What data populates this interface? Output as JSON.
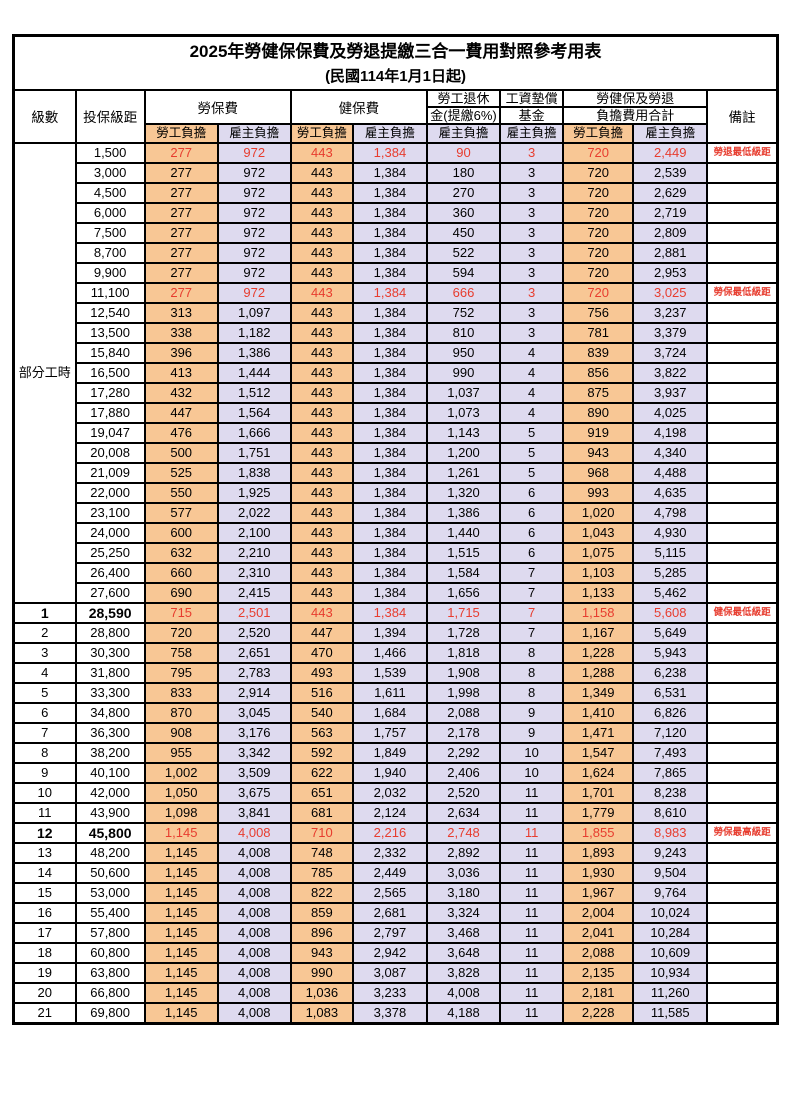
{
  "title": "2025年勞健保保費及勞退提繳三合一費用對照參考用表",
  "subtitle": "(民國114年1月1日起)",
  "columns": {
    "level": "級數",
    "bracket": "投保級距",
    "labor_insurance": "勞保費",
    "health_insurance": "健保費",
    "pension_line1": "勞工退休",
    "pension_line2": "金(提繳6%)",
    "wage_fund_line1": "工資墊償",
    "wage_fund_line2": "基金",
    "total_line1": "勞健保及勞退",
    "total_line2": "負擔費用合計",
    "remark": "備註",
    "employee_share": "勞工負擔",
    "employer_share": "雇主負擔"
  },
  "part_time": {
    "label": "部分工時",
    "row_count": 23
  },
  "colors": {
    "employee_column_bg": "#f8c795",
    "employer_column_bg": "#dedaef",
    "highlight_text": "#e73c2e",
    "border": "#000000"
  },
  "rows": [
    {
      "level": null,
      "bracket": "1,500",
      "labor_employee": "277",
      "labor_employer": "972",
      "health_employee": "443",
      "health_employer": "1,384",
      "pension_employer": "90",
      "wage_fund_employer": "3",
      "total_employee": "720",
      "total_employer": "2,449",
      "remark": "勞退最低級距",
      "red": true,
      "bold": false
    },
    {
      "level": null,
      "bracket": "3,000",
      "labor_employee": "277",
      "labor_employer": "972",
      "health_employee": "443",
      "health_employer": "1,384",
      "pension_employer": "180",
      "wage_fund_employer": "3",
      "total_employee": "720",
      "total_employer": "2,539",
      "remark": "",
      "red": false,
      "bold": false
    },
    {
      "level": null,
      "bracket": "4,500",
      "labor_employee": "277",
      "labor_employer": "972",
      "health_employee": "443",
      "health_employer": "1,384",
      "pension_employer": "270",
      "wage_fund_employer": "3",
      "total_employee": "720",
      "total_employer": "2,629",
      "remark": "",
      "red": false,
      "bold": false
    },
    {
      "level": null,
      "bracket": "6,000",
      "labor_employee": "277",
      "labor_employer": "972",
      "health_employee": "443",
      "health_employer": "1,384",
      "pension_employer": "360",
      "wage_fund_employer": "3",
      "total_employee": "720",
      "total_employer": "2,719",
      "remark": "",
      "red": false,
      "bold": false
    },
    {
      "level": null,
      "bracket": "7,500",
      "labor_employee": "277",
      "labor_employer": "972",
      "health_employee": "443",
      "health_employer": "1,384",
      "pension_employer": "450",
      "wage_fund_employer": "3",
      "total_employee": "720",
      "total_employer": "2,809",
      "remark": "",
      "red": false,
      "bold": false
    },
    {
      "level": null,
      "bracket": "8,700",
      "labor_employee": "277",
      "labor_employer": "972",
      "health_employee": "443",
      "health_employer": "1,384",
      "pension_employer": "522",
      "wage_fund_employer": "3",
      "total_employee": "720",
      "total_employer": "2,881",
      "remark": "",
      "red": false,
      "bold": false
    },
    {
      "level": null,
      "bracket": "9,900",
      "labor_employee": "277",
      "labor_employer": "972",
      "health_employee": "443",
      "health_employer": "1,384",
      "pension_employer": "594",
      "wage_fund_employer": "3",
      "total_employee": "720",
      "total_employer": "2,953",
      "remark": "",
      "red": false,
      "bold": false
    },
    {
      "level": null,
      "bracket": "11,100",
      "labor_employee": "277",
      "labor_employer": "972",
      "health_employee": "443",
      "health_employer": "1,384",
      "pension_employer": "666",
      "wage_fund_employer": "3",
      "total_employee": "720",
      "total_employer": "3,025",
      "remark": "勞保最低級距",
      "red": true,
      "bold": false
    },
    {
      "level": null,
      "bracket": "12,540",
      "labor_employee": "313",
      "labor_employer": "1,097",
      "health_employee": "443",
      "health_employer": "1,384",
      "pension_employer": "752",
      "wage_fund_employer": "3",
      "total_employee": "756",
      "total_employer": "3,237",
      "remark": "",
      "red": false,
      "bold": false
    },
    {
      "level": null,
      "bracket": "13,500",
      "labor_employee": "338",
      "labor_employer": "1,182",
      "health_employee": "443",
      "health_employer": "1,384",
      "pension_employer": "810",
      "wage_fund_employer": "3",
      "total_employee": "781",
      "total_employer": "3,379",
      "remark": "",
      "red": false,
      "bold": false
    },
    {
      "level": null,
      "bracket": "15,840",
      "labor_employee": "396",
      "labor_employer": "1,386",
      "health_employee": "443",
      "health_employer": "1,384",
      "pension_employer": "950",
      "wage_fund_employer": "4",
      "total_employee": "839",
      "total_employer": "3,724",
      "remark": "",
      "red": false,
      "bold": false
    },
    {
      "level": null,
      "bracket": "16,500",
      "labor_employee": "413",
      "labor_employer": "1,444",
      "health_employee": "443",
      "health_employer": "1,384",
      "pension_employer": "990",
      "wage_fund_employer": "4",
      "total_employee": "856",
      "total_employer": "3,822",
      "remark": "",
      "red": false,
      "bold": false
    },
    {
      "level": null,
      "bracket": "17,280",
      "labor_employee": "432",
      "labor_employer": "1,512",
      "health_employee": "443",
      "health_employer": "1,384",
      "pension_employer": "1,037",
      "wage_fund_employer": "4",
      "total_employee": "875",
      "total_employer": "3,937",
      "remark": "",
      "red": false,
      "bold": false
    },
    {
      "level": null,
      "bracket": "17,880",
      "labor_employee": "447",
      "labor_employer": "1,564",
      "health_employee": "443",
      "health_employer": "1,384",
      "pension_employer": "1,073",
      "wage_fund_employer": "4",
      "total_employee": "890",
      "total_employer": "4,025",
      "remark": "",
      "red": false,
      "bold": false
    },
    {
      "level": null,
      "bracket": "19,047",
      "labor_employee": "476",
      "labor_employer": "1,666",
      "health_employee": "443",
      "health_employer": "1,384",
      "pension_employer": "1,143",
      "wage_fund_employer": "5",
      "total_employee": "919",
      "total_employer": "4,198",
      "remark": "",
      "red": false,
      "bold": false
    },
    {
      "level": null,
      "bracket": "20,008",
      "labor_employee": "500",
      "labor_employer": "1,751",
      "health_employee": "443",
      "health_employer": "1,384",
      "pension_employer": "1,200",
      "wage_fund_employer": "5",
      "total_employee": "943",
      "total_employer": "4,340",
      "remark": "",
      "red": false,
      "bold": false
    },
    {
      "level": null,
      "bracket": "21,009",
      "labor_employee": "525",
      "labor_employer": "1,838",
      "health_employee": "443",
      "health_employer": "1,384",
      "pension_employer": "1,261",
      "wage_fund_employer": "5",
      "total_employee": "968",
      "total_employer": "4,488",
      "remark": "",
      "red": false,
      "bold": false
    },
    {
      "level": null,
      "bracket": "22,000",
      "labor_employee": "550",
      "labor_employer": "1,925",
      "health_employee": "443",
      "health_employer": "1,384",
      "pension_employer": "1,320",
      "wage_fund_employer": "6",
      "total_employee": "993",
      "total_employer": "4,635",
      "remark": "",
      "red": false,
      "bold": false
    },
    {
      "level": null,
      "bracket": "23,100",
      "labor_employee": "577",
      "labor_employer": "2,022",
      "health_employee": "443",
      "health_employer": "1,384",
      "pension_employer": "1,386",
      "wage_fund_employer": "6",
      "total_employee": "1,020",
      "total_employer": "4,798",
      "remark": "",
      "red": false,
      "bold": false
    },
    {
      "level": null,
      "bracket": "24,000",
      "labor_employee": "600",
      "labor_employer": "2,100",
      "health_employee": "443",
      "health_employer": "1,384",
      "pension_employer": "1,440",
      "wage_fund_employer": "6",
      "total_employee": "1,043",
      "total_employer": "4,930",
      "remark": "",
      "red": false,
      "bold": false
    },
    {
      "level": null,
      "bracket": "25,250",
      "labor_employee": "632",
      "labor_employer": "2,210",
      "health_employee": "443",
      "health_employer": "1,384",
      "pension_employer": "1,515",
      "wage_fund_employer": "6",
      "total_employee": "1,075",
      "total_employer": "5,115",
      "remark": "",
      "red": false,
      "bold": false
    },
    {
      "level": null,
      "bracket": "26,400",
      "labor_employee": "660",
      "labor_employer": "2,310",
      "health_employee": "443",
      "health_employer": "1,384",
      "pension_employer": "1,584",
      "wage_fund_employer": "7",
      "total_employee": "1,103",
      "total_employer": "5,285",
      "remark": "",
      "red": false,
      "bold": false
    },
    {
      "level": null,
      "bracket": "27,600",
      "labor_employee": "690",
      "labor_employer": "2,415",
      "health_employee": "443",
      "health_employer": "1,384",
      "pension_employer": "1,656",
      "wage_fund_employer": "7",
      "total_employee": "1,133",
      "total_employer": "5,462",
      "remark": "",
      "red": false,
      "bold": false
    },
    {
      "level": "1",
      "bracket": "28,590",
      "labor_employee": "715",
      "labor_employer": "2,501",
      "health_employee": "443",
      "health_employer": "1,384",
      "pension_employer": "1,715",
      "wage_fund_employer": "7",
      "total_employee": "1,158",
      "total_employer": "5,608",
      "remark": "健保最低級距",
      "red": true,
      "bold": true
    },
    {
      "level": "2",
      "bracket": "28,800",
      "labor_employee": "720",
      "labor_employer": "2,520",
      "health_employee": "447",
      "health_employer": "1,394",
      "pension_employer": "1,728",
      "wage_fund_employer": "7",
      "total_employee": "1,167",
      "total_employer": "5,649",
      "remark": "",
      "red": false,
      "bold": false
    },
    {
      "level": "3",
      "bracket": "30,300",
      "labor_employee": "758",
      "labor_employer": "2,651",
      "health_employee": "470",
      "health_employer": "1,466",
      "pension_employer": "1,818",
      "wage_fund_employer": "8",
      "total_employee": "1,228",
      "total_employer": "5,943",
      "remark": "",
      "red": false,
      "bold": false
    },
    {
      "level": "4",
      "bracket": "31,800",
      "labor_employee": "795",
      "labor_employer": "2,783",
      "health_employee": "493",
      "health_employer": "1,539",
      "pension_employer": "1,908",
      "wage_fund_employer": "8",
      "total_employee": "1,288",
      "total_employer": "6,238",
      "remark": "",
      "red": false,
      "bold": false
    },
    {
      "level": "5",
      "bracket": "33,300",
      "labor_employee": "833",
      "labor_employer": "2,914",
      "health_employee": "516",
      "health_employer": "1,611",
      "pension_employer": "1,998",
      "wage_fund_employer": "8",
      "total_employee": "1,349",
      "total_employer": "6,531",
      "remark": "",
      "red": false,
      "bold": false
    },
    {
      "level": "6",
      "bracket": "34,800",
      "labor_employee": "870",
      "labor_employer": "3,045",
      "health_employee": "540",
      "health_employer": "1,684",
      "pension_employer": "2,088",
      "wage_fund_employer": "9",
      "total_employee": "1,410",
      "total_employer": "6,826",
      "remark": "",
      "red": false,
      "bold": false
    },
    {
      "level": "7",
      "bracket": "36,300",
      "labor_employee": "908",
      "labor_employer": "3,176",
      "health_employee": "563",
      "health_employer": "1,757",
      "pension_employer": "2,178",
      "wage_fund_employer": "9",
      "total_employee": "1,471",
      "total_employer": "7,120",
      "remark": "",
      "red": false,
      "bold": false
    },
    {
      "level": "8",
      "bracket": "38,200",
      "labor_employee": "955",
      "labor_employer": "3,342",
      "health_employee": "592",
      "health_employer": "1,849",
      "pension_employer": "2,292",
      "wage_fund_employer": "10",
      "total_employee": "1,547",
      "total_employer": "7,493",
      "remark": "",
      "red": false,
      "bold": false
    },
    {
      "level": "9",
      "bracket": "40,100",
      "labor_employee": "1,002",
      "labor_employer": "3,509",
      "health_employee": "622",
      "health_employer": "1,940",
      "pension_employer": "2,406",
      "wage_fund_employer": "10",
      "total_employee": "1,624",
      "total_employer": "7,865",
      "remark": "",
      "red": false,
      "bold": false
    },
    {
      "level": "10",
      "bracket": "42,000",
      "labor_employee": "1,050",
      "labor_employer": "3,675",
      "health_employee": "651",
      "health_employer": "2,032",
      "pension_employer": "2,520",
      "wage_fund_employer": "11",
      "total_employee": "1,701",
      "total_employer": "8,238",
      "remark": "",
      "red": false,
      "bold": false
    },
    {
      "level": "11",
      "bracket": "43,900",
      "labor_employee": "1,098",
      "labor_employer": "3,841",
      "health_employee": "681",
      "health_employer": "2,124",
      "pension_employer": "2,634",
      "wage_fund_employer": "11",
      "total_employee": "1,779",
      "total_employer": "8,610",
      "remark": "",
      "red": false,
      "bold": false
    },
    {
      "level": "12",
      "bracket": "45,800",
      "labor_employee": "1,145",
      "labor_employer": "4,008",
      "health_employee": "710",
      "health_employer": "2,216",
      "pension_employer": "2,748",
      "wage_fund_employer": "11",
      "total_employee": "1,855",
      "total_employer": "8,983",
      "remark": "勞保最高級距",
      "red": true,
      "bold": true
    },
    {
      "level": "13",
      "bracket": "48,200",
      "labor_employee": "1,145",
      "labor_employer": "4,008",
      "health_employee": "748",
      "health_employer": "2,332",
      "pension_employer": "2,892",
      "wage_fund_employer": "11",
      "total_employee": "1,893",
      "total_employer": "9,243",
      "remark": "",
      "red": false,
      "bold": false
    },
    {
      "level": "14",
      "bracket": "50,600",
      "labor_employee": "1,145",
      "labor_employer": "4,008",
      "health_employee": "785",
      "health_employer": "2,449",
      "pension_employer": "3,036",
      "wage_fund_employer": "11",
      "total_employee": "1,930",
      "total_employer": "9,504",
      "remark": "",
      "red": false,
      "bold": false
    },
    {
      "level": "15",
      "bracket": "53,000",
      "labor_employee": "1,145",
      "labor_employer": "4,008",
      "health_employee": "822",
      "health_employer": "2,565",
      "pension_employer": "3,180",
      "wage_fund_employer": "11",
      "total_employee": "1,967",
      "total_employer": "9,764",
      "remark": "",
      "red": false,
      "bold": false
    },
    {
      "level": "16",
      "bracket": "55,400",
      "labor_employee": "1,145",
      "labor_employer": "4,008",
      "health_employee": "859",
      "health_employer": "2,681",
      "pension_employer": "3,324",
      "wage_fund_employer": "11",
      "total_employee": "2,004",
      "total_employer": "10,024",
      "remark": "",
      "red": false,
      "bold": false
    },
    {
      "level": "17",
      "bracket": "57,800",
      "labor_employee": "1,145",
      "labor_employer": "4,008",
      "health_employee": "896",
      "health_employer": "2,797",
      "pension_employer": "3,468",
      "wage_fund_employer": "11",
      "total_employee": "2,041",
      "total_employer": "10,284",
      "remark": "",
      "red": false,
      "bold": false
    },
    {
      "level": "18",
      "bracket": "60,800",
      "labor_employee": "1,145",
      "labor_employer": "4,008",
      "health_employee": "943",
      "health_employer": "2,942",
      "pension_employer": "3,648",
      "wage_fund_employer": "11",
      "total_employee": "2,088",
      "total_employer": "10,609",
      "remark": "",
      "red": false,
      "bold": false
    },
    {
      "level": "19",
      "bracket": "63,800",
      "labor_employee": "1,145",
      "labor_employer": "4,008",
      "health_employee": "990",
      "health_employer": "3,087",
      "pension_employer": "3,828",
      "wage_fund_employer": "11",
      "total_employee": "2,135",
      "total_employer": "10,934",
      "remark": "",
      "red": false,
      "bold": false
    },
    {
      "level": "20",
      "bracket": "66,800",
      "labor_employee": "1,145",
      "labor_employer": "4,008",
      "health_employee": "1,036",
      "health_employer": "3,233",
      "pension_employer": "4,008",
      "wage_fund_employer": "11",
      "total_employee": "2,181",
      "total_employer": "11,260",
      "remark": "",
      "red": false,
      "bold": false
    },
    {
      "level": "21",
      "bracket": "69,800",
      "labor_employee": "1,145",
      "labor_employer": "4,008",
      "health_employee": "1,083",
      "health_employer": "3,378",
      "pension_employer": "4,188",
      "wage_fund_employer": "11",
      "total_employee": "2,228",
      "total_employer": "11,585",
      "remark": "",
      "red": false,
      "bold": false
    }
  ]
}
